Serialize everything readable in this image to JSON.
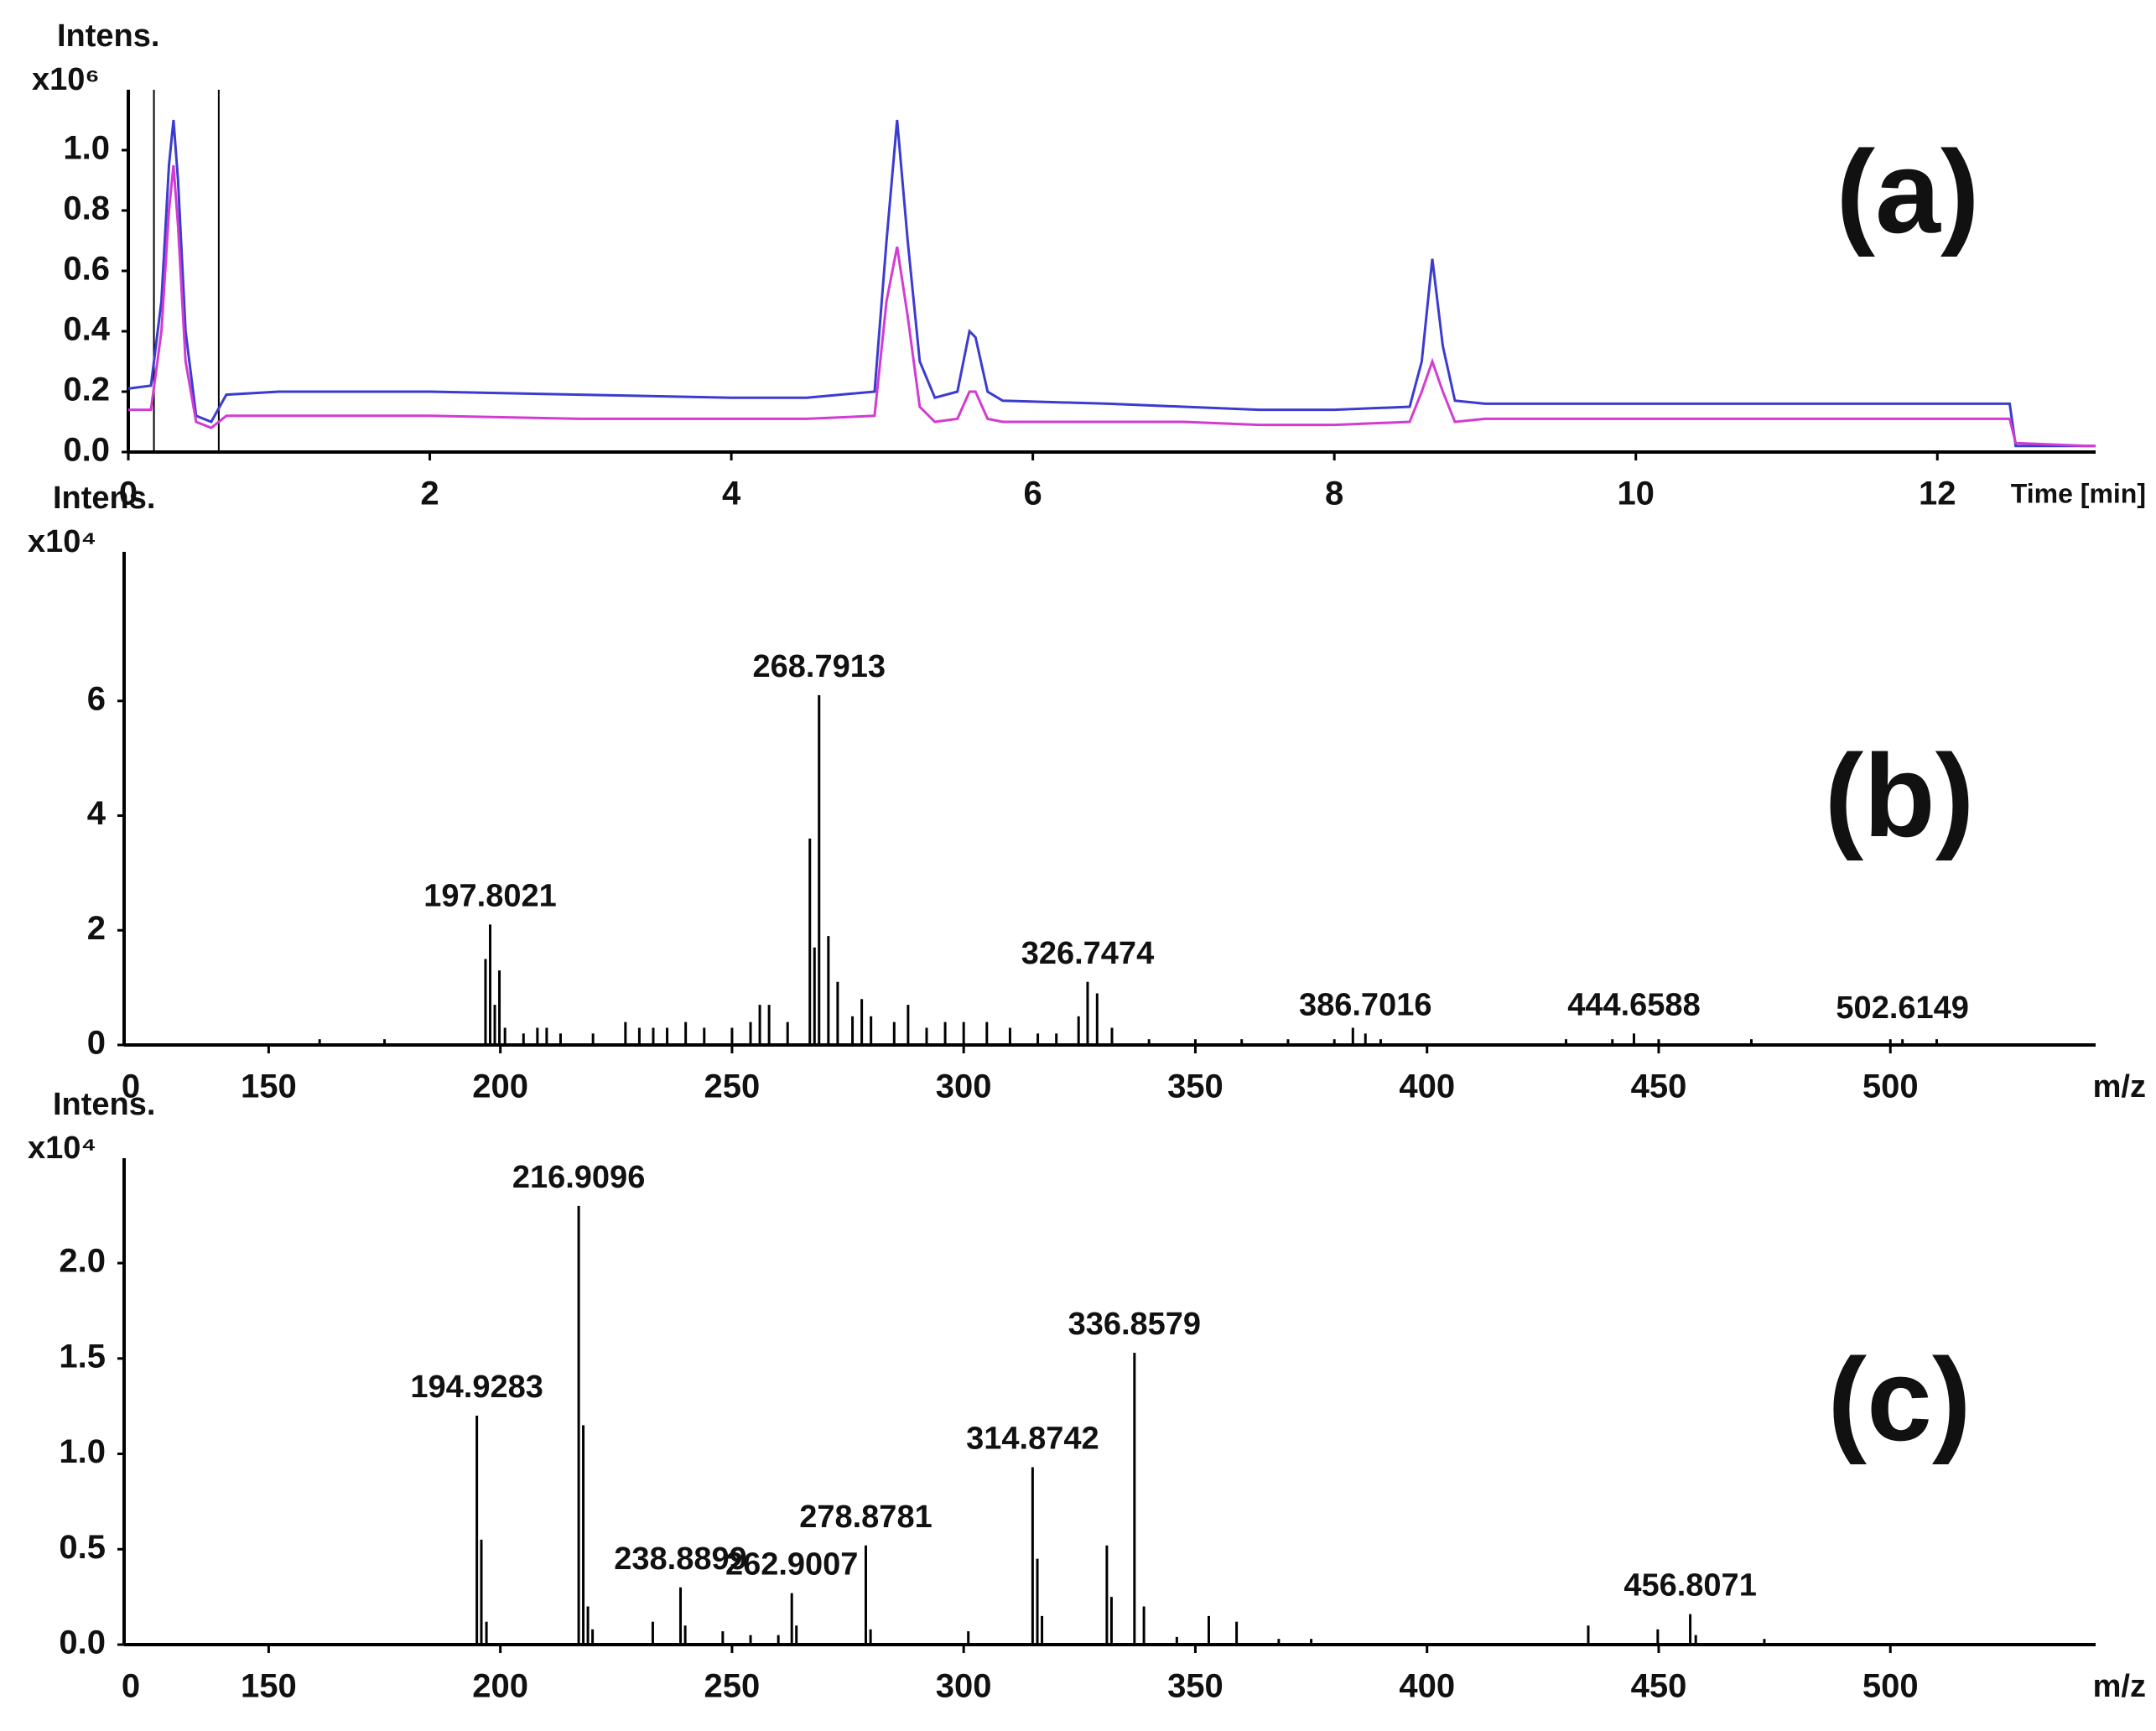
{
  "chart_data": [
    {
      "type": "line",
      "label": "(a)",
      "y_label": "Intens.",
      "y_multiplier": "x10⁶",
      "x_label": "Time [min]",
      "xlim": [
        0,
        13.05
      ],
      "ylim": [
        0,
        1.2
      ],
      "xticks": [
        0,
        2,
        4,
        6,
        8,
        10,
        12
      ],
      "yticks": [
        {
          "value": 0,
          "label": "0.0"
        },
        {
          "value": 0.2,
          "label": "0.2"
        },
        {
          "value": 0.4,
          "label": "0.4"
        },
        {
          "value": 0.6,
          "label": "0.6"
        },
        {
          "value": 0.8,
          "label": "0.8"
        },
        {
          "value": 1,
          "label": "1.0"
        }
      ],
      "vlines": [
        0.17,
        0.6
      ],
      "x": [
        0,
        0.15,
        0.22,
        0.27,
        0.3,
        0.33,
        0.38,
        0.45,
        0.55,
        0.65,
        1,
        2,
        3,
        4,
        4.5,
        4.95,
        5.03,
        5.1,
        5.17,
        5.25,
        5.35,
        5.5,
        5.58,
        5.62,
        5.7,
        5.8,
        6.5,
        7,
        7.5,
        8,
        8.5,
        8.58,
        8.65,
        8.72,
        8.8,
        9,
        10,
        11,
        12,
        12.48,
        12.52,
        13,
        13.05
      ],
      "series": [
        {
          "color": "#3b3bd0",
          "values": [
            0.21,
            0.22,
            0.5,
            0.95,
            1.1,
            0.9,
            0.4,
            0.12,
            0.1,
            0.19,
            0.2,
            0.2,
            0.19,
            0.18,
            0.18,
            0.2,
            0.7,
            1.1,
            0.7,
            0.3,
            0.18,
            0.2,
            0.4,
            0.38,
            0.2,
            0.17,
            0.16,
            0.15,
            0.14,
            0.14,
            0.15,
            0.3,
            0.64,
            0.35,
            0.17,
            0.16,
            0.16,
            0.16,
            0.16,
            0.16,
            0.02,
            0.02,
            0.02
          ]
        },
        {
          "color": "#d23cd2",
          "values": [
            0.14,
            0.14,
            0.4,
            0.8,
            0.95,
            0.75,
            0.3,
            0.1,
            0.08,
            0.12,
            0.12,
            0.12,
            0.11,
            0.11,
            0.11,
            0.12,
            0.5,
            0.68,
            0.45,
            0.15,
            0.1,
            0.11,
            0.2,
            0.2,
            0.11,
            0.1,
            0.1,
            0.1,
            0.09,
            0.09,
            0.1,
            0.2,
            0.3,
            0.2,
            0.1,
            0.11,
            0.11,
            0.11,
            0.11,
            0.11,
            0.03,
            0.02,
            0.02
          ]
        }
      ]
    },
    {
      "type": "stem",
      "label": "(b)",
      "y_label": "Intens.",
      "y_multiplier": "x10⁴",
      "x_label": "m/z",
      "origin_label": "0",
      "xlim": [
        118.8,
        544.3
      ],
      "ylim": [
        0,
        8.6
      ],
      "xticks": [
        150,
        200,
        250,
        300,
        350,
        400,
        450,
        500
      ],
      "yticks": [
        0,
        2,
        4,
        6
      ],
      "color": "#000000",
      "x": [
        161,
        175,
        196.8,
        197.8021,
        198.8,
        199.8,
        201,
        205,
        208,
        210,
        213,
        220,
        227,
        230,
        233,
        236,
        240,
        244,
        250,
        254,
        256,
        258,
        262,
        266.8,
        268.7913,
        267.8,
        270.8,
        272.8,
        276,
        278,
        280,
        285,
        288,
        292,
        296,
        300,
        305,
        310,
        316,
        320,
        324.8,
        326.7474,
        328.8,
        332,
        340,
        350,
        360,
        370,
        380,
        384,
        386.7016,
        390,
        430,
        440,
        444.6588,
        450,
        470,
        500,
        502.6149,
        510
      ],
      "values": [
        0.1,
        0.1,
        1.5,
        2.1,
        0.7,
        1.3,
        0.3,
        0.2,
        0.3,
        0.3,
        0.2,
        0.2,
        0.4,
        0.3,
        0.3,
        0.3,
        0.4,
        0.3,
        0.3,
        0.4,
        0.7,
        0.7,
        0.4,
        3.6,
        6.1,
        1.7,
        1.9,
        1.1,
        0.5,
        0.8,
        0.5,
        0.4,
        0.7,
        0.3,
        0.4,
        0.4,
        0.4,
        0.3,
        0.2,
        0.2,
        0.5,
        1.1,
        0.9,
        0.3,
        0.1,
        0.1,
        0.1,
        0.1,
        0.1,
        0.3,
        0.2,
        0.1,
        0.1,
        0.1,
        0.2,
        0.1,
        0.1,
        0.1,
        0.1,
        0.1
      ],
      "annotations": [
        197.8021,
        268.7913,
        326.7474,
        386.7016,
        444.6588,
        502.6149
      ]
    },
    {
      "type": "stem",
      "label": "(c)",
      "y_label": "Intens.",
      "y_multiplier": "x10⁴",
      "x_label": "m/z",
      "origin_label": "0",
      "xlim": [
        118.8,
        544.3
      ],
      "ylim": [
        0,
        2.55
      ],
      "xticks": [
        150,
        200,
        250,
        300,
        350,
        400,
        450,
        500
      ],
      "yticks": [
        {
          "value": 0,
          "label": "0.0"
        },
        {
          "value": 0.5,
          "label": "0.5"
        },
        {
          "value": 1,
          "label": "1.0"
        },
        {
          "value": 1.5,
          "label": "1.5"
        },
        {
          "value": 2,
          "label": "2.0"
        }
      ],
      "color": "#000000",
      "x": [
        194.9283,
        195.9,
        197,
        216.9096,
        217.9,
        218.9,
        219.9,
        232.9,
        238.8899,
        239.9,
        248,
        254,
        260,
        262.9007,
        263.9,
        278.8781,
        279.9,
        301,
        314.8742,
        315.9,
        316.9,
        330.9,
        331.9,
        336.8579,
        338.9,
        346,
        352.9,
        358.9,
        368,
        375,
        434.8,
        449.8,
        456.8071,
        458,
        472.8
      ],
      "values": [
        1.2,
        0.55,
        0.12,
        2.3,
        1.15,
        0.2,
        0.08,
        0.12,
        0.3,
        0.1,
        0.07,
        0.05,
        0.05,
        0.27,
        0.1,
        0.52,
        0.08,
        0.07,
        0.93,
        0.45,
        0.15,
        0.52,
        0.25,
        1.53,
        0.2,
        0.04,
        0.15,
        0.12,
        0.03,
        0.03,
        0.1,
        0.08,
        0.16,
        0.05,
        0.03
      ],
      "annotations": [
        194.9283,
        216.9096,
        238.8899,
        262.9007,
        278.8781,
        314.8742,
        336.8579,
        456.8071
      ]
    }
  ]
}
